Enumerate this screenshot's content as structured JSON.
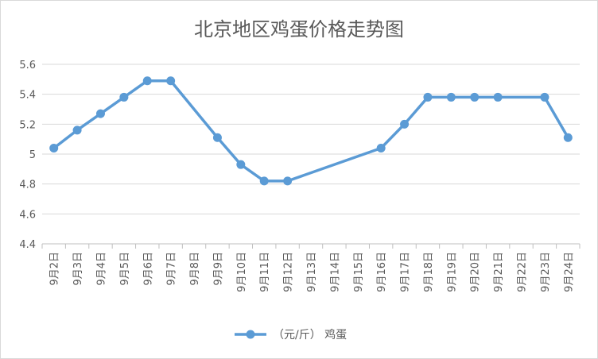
{
  "chart_data": {
    "type": "line",
    "title": "北京地区鸡蛋价格走势图",
    "categories": [
      "9月2日",
      "9月3日",
      "9月4日",
      "9月5日",
      "9月6日",
      "9月7日",
      "9月8日",
      "9月9日",
      "9月10日",
      "9月11日",
      "9月12日",
      "9月13日",
      "9月14日",
      "9月15日",
      "9月16日",
      "9月17日",
      "9月18日",
      "9月19日",
      "9月20日",
      "9月21日",
      "9月22日",
      "9月23日",
      "9月24日"
    ],
    "series": [
      {
        "name": "（元/斤） 鸡蛋",
        "values": [
          5.04,
          5.16,
          5.27,
          5.38,
          5.49,
          5.49,
          null,
          5.11,
          4.93,
          4.82,
          4.82,
          null,
          null,
          null,
          5.04,
          5.2,
          5.38,
          5.38,
          5.38,
          5.38,
          null,
          5.38,
          5.11
        ],
        "color": "#5b9bd5"
      }
    ],
    "yticks": [
      "4.4",
      "4.6",
      "4.8",
      "5",
      "5.2",
      "5.4",
      "5.6"
    ],
    "ylim": [
      4.4,
      5.6
    ],
    "grid": true,
    "legend": "bottom",
    "gap_handling": "connect"
  }
}
